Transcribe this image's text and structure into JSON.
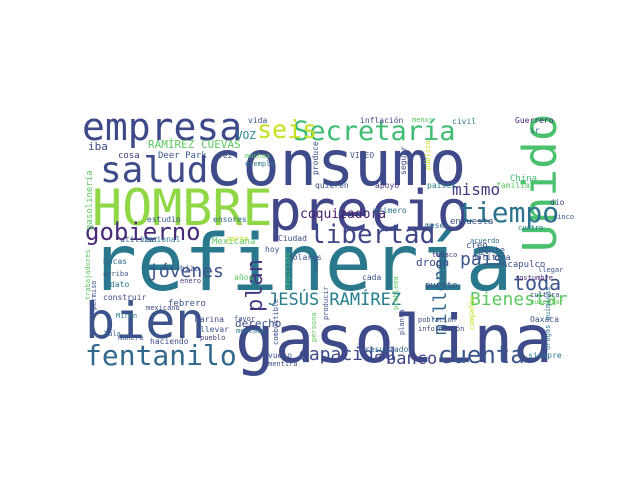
{
  "words": [
    "consumo",
    "refinería",
    "gasolina",
    "precio",
    "HOMBRE",
    "empresa",
    "bien",
    "salud",
    "fentanilo",
    "gobierno",
    "Secretaría",
    "seis",
    "Unido",
    "tiempo",
    "libertad",
    "jóvenes",
    "plan",
    "JESÚS RAMÍREZ",
    "Bienestar",
    "toda",
    "país",
    "mismo",
    "millones",
    "capacidad",
    "banco",
    "cuenta",
    "coquizadora",
    "derecho",
    "RAMÍREZ CUEVAS",
    "VOZ",
    "iba",
    "cosa",
    "Deer Park",
    "vez",
    "muchas",
    "ejemplo",
    "produce",
    "vida",
    "inflación",
    "menos",
    "civil",
    "Guerrero",
    "VIDEO",
    "ir",
    "seguir",
    "quieren",
    "apoyo",
    "países",
    "familia",
    "China",
    "primero",
    "encuesta",
    "gente",
    "creo",
    "acuerdo",
    "gasolinería",
    "estudio",
    "ensores",
    "utilizar",
    "nacional",
    "Mexicana",
    "parte",
    "Ciudad",
    "dólares",
    "hoy",
    "meses",
    "droga",
    "puerto",
    "tabaco",
    "política",
    "Acapulco",
    "costumbre",
    "cultura",
    "llegar",
    "cuatro",
    "cinco",
    "dio",
    "Bocas",
    "arriba",
    "dato",
    "construir",
    "permiso",
    "hizo",
    "enero",
    "febrero",
    "años",
    "favor",
    "mexicano",
    "Miren",
    "Tula",
    "manera",
    "Marina",
    "llevar",
    "pueblo",
    "haciendo",
    "vuelo",
    "mentira",
    "mercado",
    "combustible",
    "seguridad",
    "ocho",
    "persona",
    "producir",
    "cada",
    "planta",
    "población",
    "información",
    "resultado",
    "siempre",
    "Oaxaca",
    "aumentar",
    "drogas químicas",
    "compañía",
    "trabajadores",
    "público",
    "problema"
  ]
}
